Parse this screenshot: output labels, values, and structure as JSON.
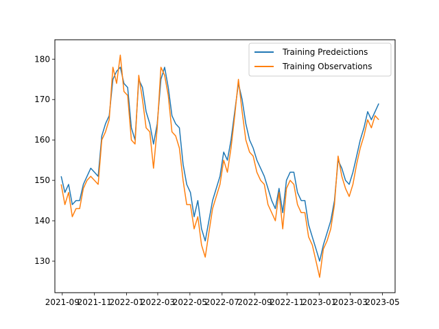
{
  "chart_data": {
    "type": "line",
    "title": "",
    "xlabel": "",
    "ylabel": "",
    "xlim": [
      "2021-08-18",
      "2023-05-25"
    ],
    "ylim": [
      122.2,
      184.8
    ],
    "grid": false,
    "legend_position": "top-right",
    "x_tick_labels": [
      "2021-09",
      "2021-11",
      "2022-01",
      "2022-03",
      "2022-05",
      "2022-07",
      "2022-09",
      "2022-11",
      "2023-01",
      "2023-03",
      "2023-05"
    ],
    "x_tick_dates": [
      "2021-09-01",
      "2021-11-01",
      "2022-01-01",
      "2022-03-01",
      "2022-05-01",
      "2022-07-01",
      "2022-09-01",
      "2022-11-01",
      "2023-01-01",
      "2023-03-01",
      "2023-05-01"
    ],
    "y_ticks": [
      130,
      140,
      150,
      160,
      170,
      180
    ],
    "x": [
      "2021-08-30",
      "2021-09-06",
      "2021-09-13",
      "2021-09-20",
      "2021-09-27",
      "2021-10-04",
      "2021-10-11",
      "2021-10-18",
      "2021-10-25",
      "2021-11-01",
      "2021-11-08",
      "2021-11-15",
      "2021-11-22",
      "2021-11-29",
      "2021-12-06",
      "2021-12-13",
      "2021-12-20",
      "2021-12-27",
      "2022-01-03",
      "2022-01-10",
      "2022-01-17",
      "2022-01-24",
      "2022-01-31",
      "2022-02-07",
      "2022-02-14",
      "2022-02-21",
      "2022-02-28",
      "2022-03-07",
      "2022-03-14",
      "2022-03-21",
      "2022-03-28",
      "2022-04-04",
      "2022-04-11",
      "2022-04-18",
      "2022-04-25",
      "2022-05-02",
      "2022-05-09",
      "2022-05-16",
      "2022-05-23",
      "2022-05-30",
      "2022-06-06",
      "2022-06-13",
      "2022-06-20",
      "2022-06-27",
      "2022-07-04",
      "2022-07-11",
      "2022-07-18",
      "2022-07-25",
      "2022-08-01",
      "2022-08-08",
      "2022-08-15",
      "2022-08-22",
      "2022-08-29",
      "2022-09-05",
      "2022-09-12",
      "2022-09-19",
      "2022-09-26",
      "2022-10-03",
      "2022-10-10",
      "2022-10-17",
      "2022-10-24",
      "2022-10-31",
      "2022-11-07",
      "2022-11-14",
      "2022-11-21",
      "2022-11-28",
      "2022-12-05",
      "2022-12-12",
      "2022-12-19",
      "2022-12-26",
      "2023-01-02",
      "2023-01-09",
      "2023-01-16",
      "2023-01-23",
      "2023-01-30",
      "2023-02-06",
      "2023-02-13",
      "2023-02-20",
      "2023-02-27",
      "2023-03-06",
      "2023-03-13",
      "2023-03-20",
      "2023-03-27",
      "2023-04-03",
      "2023-04-10",
      "2023-04-17",
      "2023-04-24"
    ],
    "series": [
      {
        "name": "Training Predeictions",
        "color": "#1f77b4",
        "values": [
          151,
          147,
          149,
          144,
          145,
          145,
          149,
          151,
          153,
          152,
          151,
          161,
          164,
          166,
          175,
          177,
          178,
          174,
          173,
          163,
          160,
          175,
          173,
          167,
          164,
          159,
          164,
          175,
          178,
          173,
          166,
          164,
          163,
          154,
          149,
          147,
          141,
          145,
          138,
          135,
          140,
          145,
          148,
          151,
          157,
          155,
          160,
          167,
          174,
          170,
          164,
          160,
          158,
          155,
          153,
          151,
          148,
          145,
          143,
          148,
          142,
          150,
          152,
          152,
          147,
          145,
          145,
          139,
          136,
          133,
          130,
          134,
          137,
          140,
          145,
          155,
          153,
          150,
          149,
          152,
          156,
          160,
          163,
          167,
          165,
          167,
          169
        ]
      },
      {
        "name": "Training Observations",
        "color": "#ff7f0e",
        "values": [
          149,
          144,
          147,
          141,
          143,
          143,
          148,
          150,
          151,
          150,
          149,
          160,
          162,
          165,
          178,
          174,
          181,
          172,
          171,
          160,
          159,
          176,
          170,
          163,
          162,
          153,
          163,
          178,
          176,
          171,
          162,
          161,
          158,
          150,
          144,
          144,
          138,
          141,
          134,
          131,
          137,
          143,
          146,
          149,
          155,
          152,
          158,
          166,
          175,
          167,
          160,
          157,
          156,
          152,
          150,
          149,
          144,
          142,
          140,
          147,
          138,
          148,
          150,
          149,
          144,
          142,
          142,
          136,
          134,
          130,
          126,
          133,
          135,
          138,
          144,
          156,
          151,
          148,
          146,
          149,
          154,
          158,
          161,
          165,
          163,
          166,
          165
        ]
      }
    ]
  }
}
